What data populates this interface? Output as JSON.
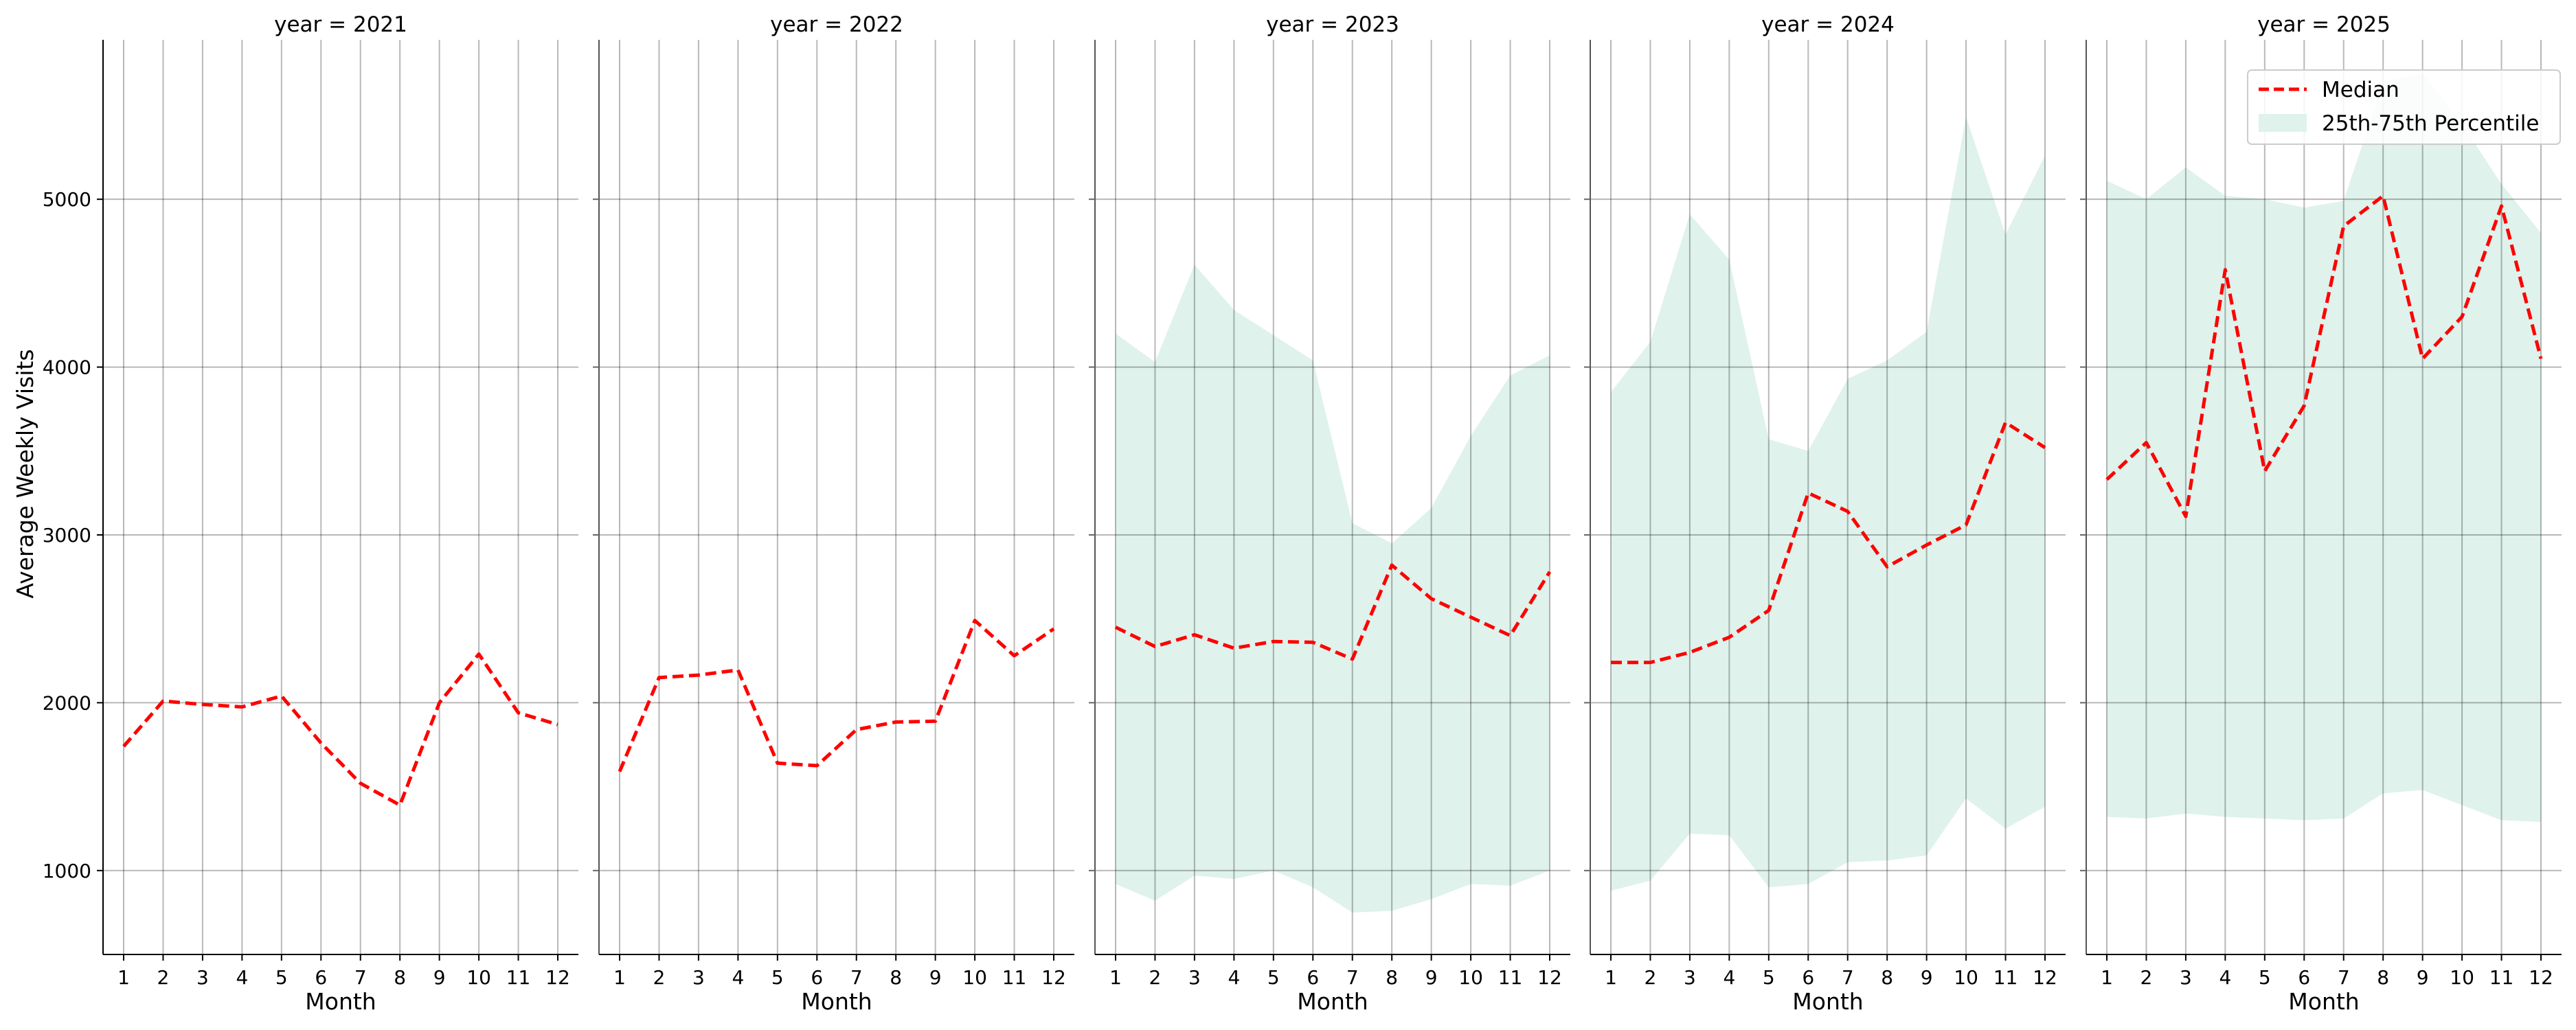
{
  "chart_data": {
    "type": "line",
    "ylabel": "Average Weekly Visits",
    "xlabel": "Month",
    "x": [
      1,
      2,
      3,
      4,
      5,
      6,
      7,
      8,
      9,
      10,
      11,
      12
    ],
    "ylim": [
      500,
      5950
    ],
    "yticks": [
      1000,
      2000,
      3000,
      4000,
      5000
    ],
    "grid": true,
    "sharey": true,
    "legend": {
      "placement": "top-right",
      "entries": [
        {
          "label": "Median",
          "style": "dashed-line",
          "color": "#ff0000"
        },
        {
          "label": "25th-75th Percentile",
          "style": "band",
          "color": "#dff2ec"
        }
      ]
    },
    "panels": [
      {
        "title": "year = 2021",
        "median": [
          1740,
          2010,
          1990,
          1975,
          2040,
          1760,
          1520,
          1390,
          2000,
          2290,
          1940,
          1870
        ],
        "p25": null,
        "p75": null
      },
      {
        "title": "year = 2022",
        "median": [
          1590,
          2150,
          2165,
          2195,
          1640,
          1625,
          1840,
          1885,
          1890,
          2490,
          2280,
          2440
        ],
        "p25": null,
        "p75": null
      },
      {
        "title": "year = 2023",
        "median": [
          2450,
          2335,
          2405,
          2325,
          2365,
          2360,
          2260,
          2820,
          2620,
          2510,
          2400,
          2780
        ],
        "p25": [
          920,
          820,
          970,
          950,
          1000,
          900,
          750,
          760,
          830,
          920,
          910,
          1000
        ],
        "p75": [
          4200,
          4030,
          4610,
          4340,
          4190,
          4040,
          3070,
          2950,
          3160,
          3590,
          3950,
          4070
        ]
      },
      {
        "title": "year = 2024",
        "median": [
          2240,
          2240,
          2300,
          2390,
          2550,
          3250,
          3140,
          2810,
          2940,
          3060,
          3670,
          3520
        ],
        "p25": [
          880,
          940,
          1220,
          1210,
          900,
          920,
          1050,
          1060,
          1090,
          1430,
          1250,
          1380
        ],
        "p75": [
          3850,
          4150,
          4910,
          4640,
          3570,
          3500,
          3930,
          4040,
          4210,
          5490,
          4790,
          5260
        ]
      },
      {
        "title": "year = 2025",
        "median": [
          3330,
          3550,
          3110,
          4580,
          3380,
          3770,
          4840,
          5020,
          4050,
          4300,
          4960,
          4050
        ],
        "p25": [
          1320,
          1310,
          1340,
          1320,
          1310,
          1300,
          1310,
          1460,
          1480,
          1390,
          1300,
          1290
        ],
        "p75": [
          5110,
          5000,
          5190,
          5020,
          5000,
          4950,
          4990,
          5700,
          5750,
          5450,
          5090,
          4800
        ]
      }
    ]
  }
}
